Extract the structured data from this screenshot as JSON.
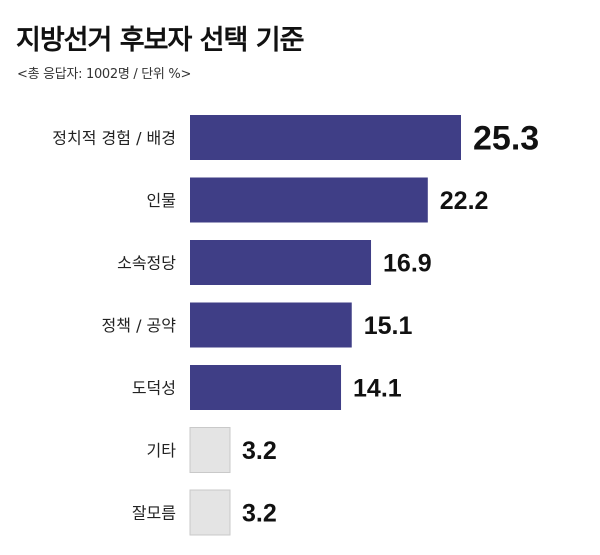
{
  "chart_data": {
    "type": "bar",
    "orientation": "horizontal",
    "title": "지방선거 후보자 선택 기준",
    "subtitle": "<총 응답자: 1002명 / 단위 %>",
    "categories": [
      "정치적 경험 / 배경",
      "인물",
      "소속정당",
      "정책 / 공약",
      "도덕성",
      "기타",
      "잘모름"
    ],
    "values": [
      25.3,
      22.2,
      16.9,
      15.1,
      14.1,
      3.2,
      3.2
    ],
    "value_labels": [
      "25.3",
      "22.2",
      "16.9",
      "15.1",
      "14.1",
      "3.2",
      "3.2"
    ],
    "colors": {
      "main": "#3f3e86",
      "minor": "#e4e4e4",
      "minor_border": "#c9c9c9"
    },
    "xlim": [
      0,
      25.3
    ],
    "grid": false,
    "legend": "none"
  }
}
